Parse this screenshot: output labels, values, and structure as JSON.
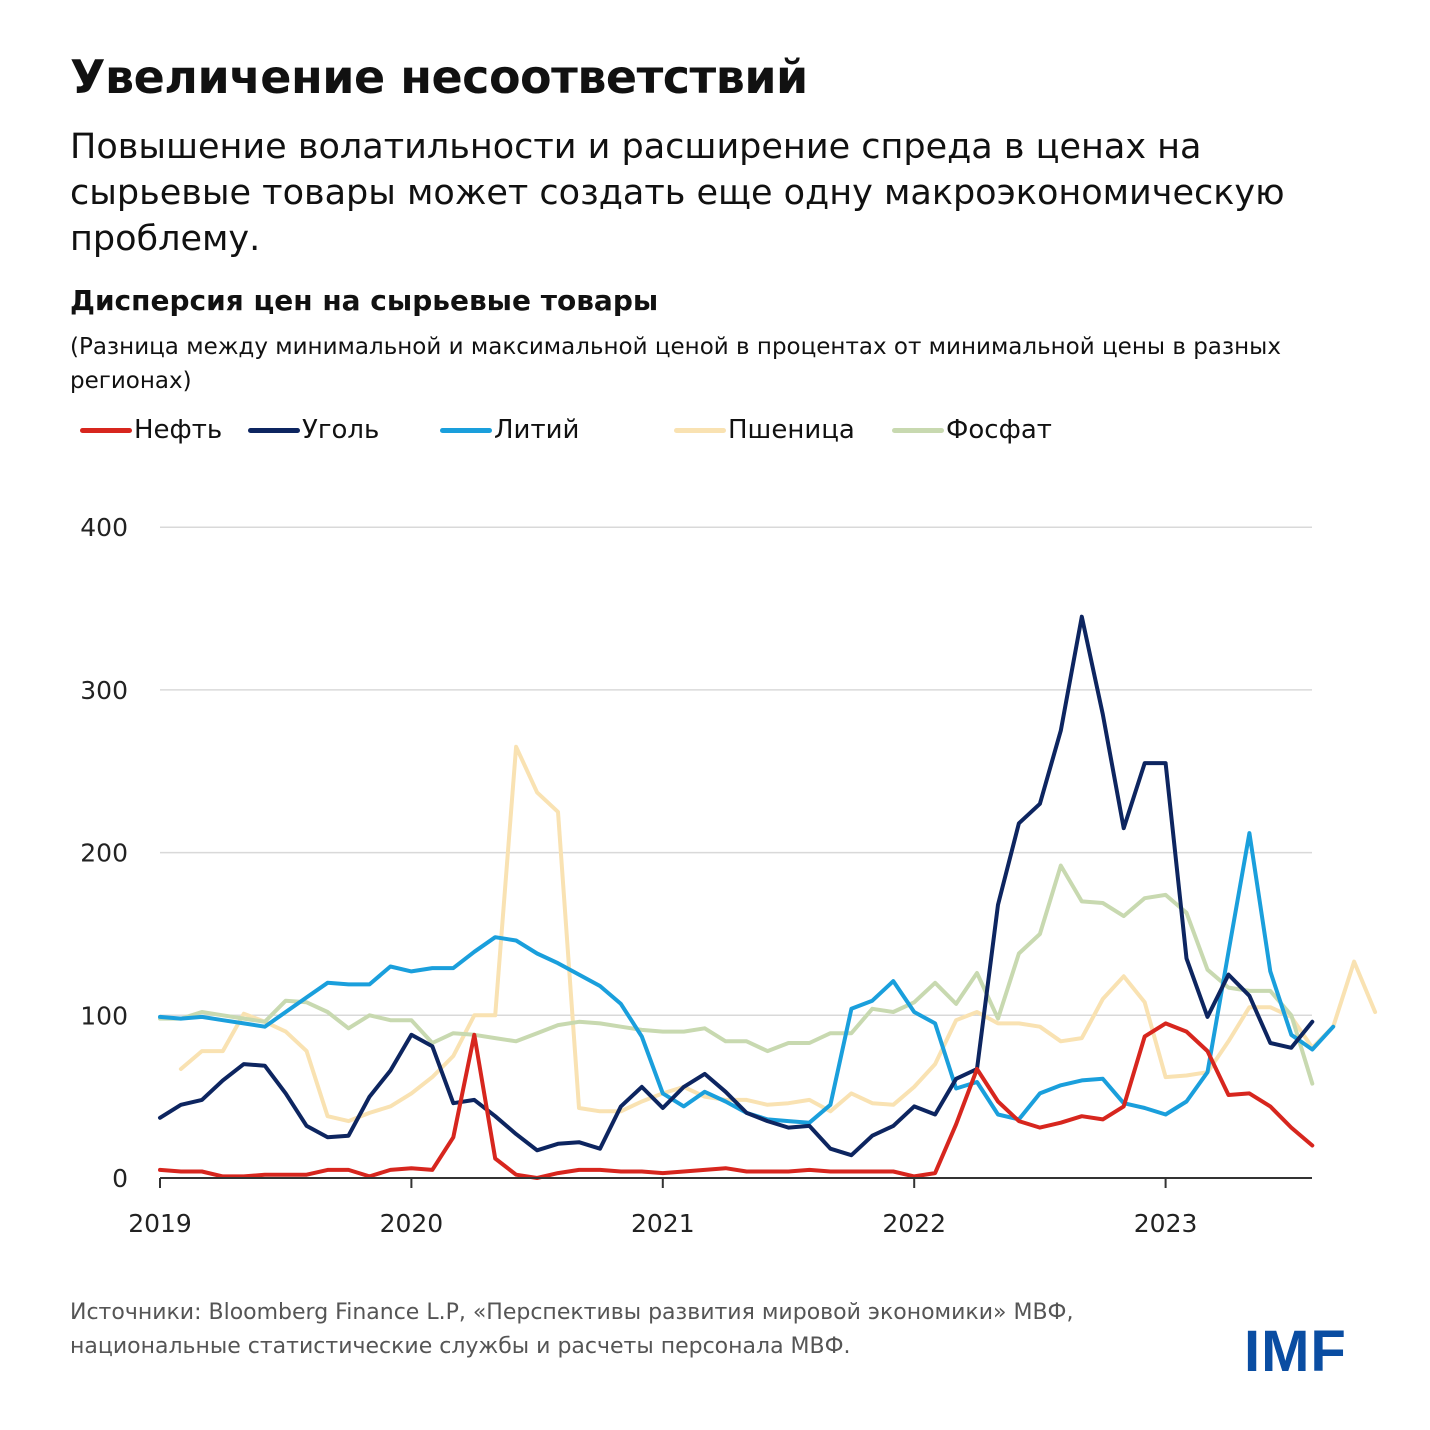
{
  "header": {
    "title": "Увеличение несоответствий",
    "subtitle": "Повышение волатильности и расширение спреда в ценах на сырьевые товары может создать еще одну макроэкономическую проблему."
  },
  "chart_header": {
    "title": "Дисперсия цен на сырьевые товары",
    "subtitle": "(Разница между минимальной и максимальной ценой в процентах от минимальной цены в разных регионах)"
  },
  "footer": {
    "source": "Источники: Bloomberg Finance L.P, «Перспективы развития мировой экономики» МВФ, национальные статистические службы и расчеты персонала МВФ.",
    "logo": "IMF"
  },
  "chart_data": {
    "type": "line",
    "x_start": "2019-01",
    "x_step": "month",
    "ylim": [
      0,
      400
    ],
    "yticks": [
      0,
      100,
      200,
      300,
      400
    ],
    "xticks": [
      "2019",
      "2020",
      "2021",
      "2022",
      "2023"
    ],
    "grid": true,
    "legend_position": "top",
    "series": [
      {
        "name": "Пшеница",
        "color": "#f9e2b2",
        "start_index": 1,
        "values": [
          67,
          78,
          78,
          101,
          96,
          90,
          78,
          38,
          35,
          40,
          44,
          52,
          62,
          75,
          100,
          100,
          265,
          237,
          225,
          43,
          41,
          41,
          47,
          52,
          56,
          50,
          48,
          48,
          45,
          46,
          48,
          41,
          52,
          46,
          45,
          56,
          70,
          97,
          102,
          95,
          95,
          93,
          84,
          86,
          110,
          124,
          108,
          62,
          63,
          65,
          84,
          105,
          105,
          99,
          80,
          93,
          133,
          102
        ]
      },
      {
        "name": "Фосфат",
        "color": "#c8d9b0",
        "values": [
          98,
          98,
          102,
          100,
          98,
          96,
          109,
          108,
          102,
          92,
          100,
          97,
          97,
          83,
          89,
          88,
          86,
          84,
          89,
          94,
          96,
          95,
          93,
          91,
          90,
          90,
          92,
          84,
          84,
          78,
          83,
          83,
          89,
          89,
          104,
          102,
          108,
          120,
          107,
          126,
          98,
          138,
          150,
          192,
          170,
          169,
          161,
          172,
          174,
          163,
          128,
          117,
          115,
          115,
          100,
          58
        ]
      },
      {
        "name": "Литий",
        "color": "#1a9fdc",
        "values": [
          99,
          98,
          99,
          97,
          95,
          93,
          102,
          111,
          120,
          119,
          119,
          130,
          127,
          129,
          129,
          139,
          148,
          146,
          138,
          132,
          125,
          118,
          107,
          87,
          52,
          44,
          53,
          47,
          40,
          36,
          35,
          34,
          45,
          104,
          109,
          121,
          102,
          95,
          55,
          59,
          39,
          36,
          52,
          57,
          60,
          61,
          46,
          43,
          39,
          47,
          65,
          139,
          212,
          127,
          88,
          79,
          93
        ]
      },
      {
        "name": "Уголь",
        "color": "#0d2560",
        "values": [
          37,
          45,
          48,
          60,
          70,
          69,
          52,
          32,
          25,
          26,
          50,
          66,
          88,
          81,
          46,
          48,
          38,
          27,
          17,
          21,
          22,
          18,
          44,
          56,
          43,
          56,
          64,
          53,
          40,
          35,
          31,
          32,
          18,
          14,
          26,
          32,
          44,
          39,
          61,
          67,
          168,
          218,
          230,
          275,
          345,
          285,
          215,
          255,
          255,
          135,
          99,
          125,
          112,
          83,
          80,
          96
        ]
      },
      {
        "name": "Нефть",
        "color": "#d7261e",
        "values": [
          5,
          4,
          4,
          1,
          1,
          2,
          2,
          2,
          5,
          5,
          1,
          5,
          6,
          5,
          25,
          88,
          12,
          2,
          0,
          3,
          5,
          5,
          4,
          4,
          3,
          4,
          5,
          6,
          4,
          4,
          4,
          5,
          4,
          4,
          4,
          4,
          1,
          3,
          33,
          67,
          47,
          35,
          31,
          34,
          38,
          36,
          44,
          87,
          95,
          90,
          78,
          51,
          52,
          44,
          31,
          20
        ]
      }
    ]
  }
}
